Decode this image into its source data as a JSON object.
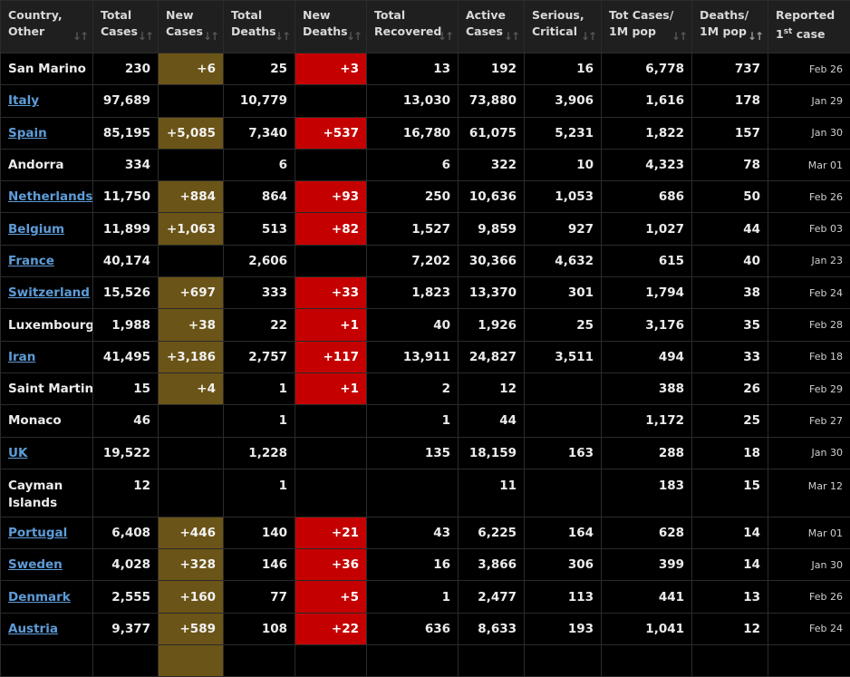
{
  "columns": [
    {
      "label": "Country,\nOther"
    },
    {
      "label": "Total\nCases"
    },
    {
      "label": "New\nCases"
    },
    {
      "label": "Total\nDeaths"
    },
    {
      "label": "New\nDeaths"
    },
    {
      "label": "Total\nRecovered"
    },
    {
      "label": "Active\nCases"
    },
    {
      "label": "Serious,\nCritical"
    },
    {
      "label": "Tot Cases/\n1M pop"
    },
    {
      "label": "Deaths/\n1M pop"
    },
    {
      "label": "Reported\n1st case"
    }
  ],
  "colors": {
    "new_cases_bg": "#6b5417",
    "new_deaths_bg": "#c50000",
    "link": "#5e9cd8",
    "header_bg": "#1f1f1f",
    "background": "#000000"
  },
  "rows": [
    {
      "country": "San Marino",
      "link": false,
      "total_cases": "230",
      "new_cases": "+6",
      "total_deaths": "25",
      "new_deaths": "+3",
      "total_recovered": "13",
      "active_cases": "192",
      "serious": "16",
      "cases_per_1m": "6,778",
      "deaths_per_1m": "737",
      "first_case": "Feb 26"
    },
    {
      "country": "Italy",
      "link": true,
      "total_cases": "97,689",
      "new_cases": "",
      "total_deaths": "10,779",
      "new_deaths": "",
      "total_recovered": "13,030",
      "active_cases": "73,880",
      "serious": "3,906",
      "cases_per_1m": "1,616",
      "deaths_per_1m": "178",
      "first_case": "Jan 29"
    },
    {
      "country": "Spain",
      "link": true,
      "total_cases": "85,195",
      "new_cases": "+5,085",
      "total_deaths": "7,340",
      "new_deaths": "+537",
      "total_recovered": "16,780",
      "active_cases": "61,075",
      "serious": "5,231",
      "cases_per_1m": "1,822",
      "deaths_per_1m": "157",
      "first_case": "Jan 30"
    },
    {
      "country": "Andorra",
      "link": false,
      "total_cases": "334",
      "new_cases": "",
      "total_deaths": "6",
      "new_deaths": "",
      "total_recovered": "6",
      "active_cases": "322",
      "serious": "10",
      "cases_per_1m": "4,323",
      "deaths_per_1m": "78",
      "first_case": "Mar 01"
    },
    {
      "country": "Netherlands",
      "link": true,
      "total_cases": "11,750",
      "new_cases": "+884",
      "total_deaths": "864",
      "new_deaths": "+93",
      "total_recovered": "250",
      "active_cases": "10,636",
      "serious": "1,053",
      "cases_per_1m": "686",
      "deaths_per_1m": "50",
      "first_case": "Feb 26"
    },
    {
      "country": "Belgium",
      "link": true,
      "total_cases": "11,899",
      "new_cases": "+1,063",
      "total_deaths": "513",
      "new_deaths": "+82",
      "total_recovered": "1,527",
      "active_cases": "9,859",
      "serious": "927",
      "cases_per_1m": "1,027",
      "deaths_per_1m": "44",
      "first_case": "Feb 03"
    },
    {
      "country": "France",
      "link": true,
      "total_cases": "40,174",
      "new_cases": "",
      "total_deaths": "2,606",
      "new_deaths": "",
      "total_recovered": "7,202",
      "active_cases": "30,366",
      "serious": "4,632",
      "cases_per_1m": "615",
      "deaths_per_1m": "40",
      "first_case": "Jan 23"
    },
    {
      "country": "Switzerland",
      "link": true,
      "total_cases": "15,526",
      "new_cases": "+697",
      "total_deaths": "333",
      "new_deaths": "+33",
      "total_recovered": "1,823",
      "active_cases": "13,370",
      "serious": "301",
      "cases_per_1m": "1,794",
      "deaths_per_1m": "38",
      "first_case": "Feb 24"
    },
    {
      "country": "Luxembourg",
      "link": false,
      "total_cases": "1,988",
      "new_cases": "+38",
      "total_deaths": "22",
      "new_deaths": "+1",
      "total_recovered": "40",
      "active_cases": "1,926",
      "serious": "25",
      "cases_per_1m": "3,176",
      "deaths_per_1m": "35",
      "first_case": "Feb 28"
    },
    {
      "country": "Iran",
      "link": true,
      "total_cases": "41,495",
      "new_cases": "+3,186",
      "total_deaths": "2,757",
      "new_deaths": "+117",
      "total_recovered": "13,911",
      "active_cases": "24,827",
      "serious": "3,511",
      "cases_per_1m": "494",
      "deaths_per_1m": "33",
      "first_case": "Feb 18"
    },
    {
      "country": "Saint Martin",
      "link": false,
      "total_cases": "15",
      "new_cases": "+4",
      "total_deaths": "1",
      "new_deaths": "+1",
      "total_recovered": "2",
      "active_cases": "12",
      "serious": "",
      "cases_per_1m": "388",
      "deaths_per_1m": "26",
      "first_case": "Feb 29"
    },
    {
      "country": "Monaco",
      "link": false,
      "total_cases": "46",
      "new_cases": "",
      "total_deaths": "1",
      "new_deaths": "",
      "total_recovered": "1",
      "active_cases": "44",
      "serious": "",
      "cases_per_1m": "1,172",
      "deaths_per_1m": "25",
      "first_case": "Feb 27"
    },
    {
      "country": "UK",
      "link": true,
      "total_cases": "19,522",
      "new_cases": "",
      "total_deaths": "1,228",
      "new_deaths": "",
      "total_recovered": "135",
      "active_cases": "18,159",
      "serious": "163",
      "cases_per_1m": "288",
      "deaths_per_1m": "18",
      "first_case": "Jan 30"
    },
    {
      "country": "Cayman Islands",
      "link": false,
      "tall": true,
      "total_cases": "12",
      "new_cases": "",
      "total_deaths": "1",
      "new_deaths": "",
      "total_recovered": "",
      "active_cases": "11",
      "serious": "",
      "cases_per_1m": "183",
      "deaths_per_1m": "15",
      "first_case": "Mar 12"
    },
    {
      "country": "Portugal",
      "link": true,
      "total_cases": "6,408",
      "new_cases": "+446",
      "total_deaths": "140",
      "new_deaths": "+21",
      "total_recovered": "43",
      "active_cases": "6,225",
      "serious": "164",
      "cases_per_1m": "628",
      "deaths_per_1m": "14",
      "first_case": "Mar 01"
    },
    {
      "country": "Sweden",
      "link": true,
      "total_cases": "4,028",
      "new_cases": "+328",
      "total_deaths": "146",
      "new_deaths": "+36",
      "total_recovered": "16",
      "active_cases": "3,866",
      "serious": "306",
      "cases_per_1m": "399",
      "deaths_per_1m": "14",
      "first_case": "Jan 30"
    },
    {
      "country": "Denmark",
      "link": true,
      "total_cases": "2,555",
      "new_cases": "+160",
      "total_deaths": "77",
      "new_deaths": "+5",
      "total_recovered": "1",
      "active_cases": "2,477",
      "serious": "113",
      "cases_per_1m": "441",
      "deaths_per_1m": "13",
      "first_case": "Feb 26"
    },
    {
      "country": "Austria",
      "link": true,
      "total_cases": "9,377",
      "new_cases": "+589",
      "total_deaths": "108",
      "new_deaths": "+22",
      "total_recovered": "636",
      "active_cases": "8,633",
      "serious": "193",
      "cases_per_1m": "1,041",
      "deaths_per_1m": "12",
      "first_case": "Feb 24"
    },
    {
      "country": "",
      "link": false,
      "total_cases": "",
      "new_cases": " ",
      "total_deaths": "",
      "new_deaths": "",
      "total_recovered": "",
      "active_cases": "",
      "serious": "",
      "cases_per_1m": "",
      "deaths_per_1m": "",
      "first_case": ""
    }
  ]
}
